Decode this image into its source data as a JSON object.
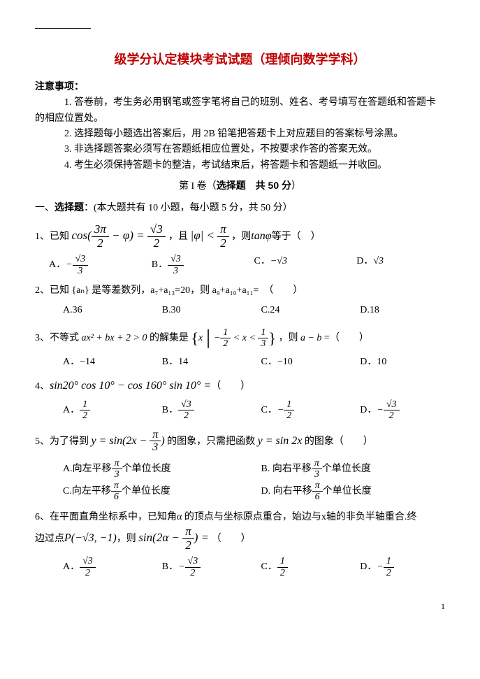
{
  "title": "级学分认定模块考试试题（理倾向数学学科）",
  "notice_heading": "注意事项：",
  "notice_items": [
    "1. 答卷前，考生务必用钢笔或签字笔将自己的班别、姓名、考号填写在答题纸和答题卡的相应位置处。",
    "2. 选择题每小题选出答案后，用 2B 铅笔把答题卡上对应题目的答案标号涂黑。",
    "3. 非选择题答案必须写在答题纸相应位置处，不按要求作答的答案无效。",
    "4. 考生必须保持答题卡的整洁，考试结束后，将答题卡和答题纸一并收回。"
  ],
  "section_header_a": "第 I 卷（",
  "section_header_b": "选择题",
  "section_header_c": "　共 50 分",
  "section_header_d": "）",
  "section_title_a": "一、",
  "section_title_b": "选择题",
  "section_title_c": "：(本大题共有 10 小题，每小题 5 分，共 50 分）",
  "q1_a": "1、已知 ",
  "q1_cos": "cos",
  "q1_frac1_num": "3π",
  "q1_frac1_den": "2",
  "q1_phi": " − φ",
  "q1_eq": " = ",
  "q1_frac2_num": "√3",
  "q1_frac2_den": "2",
  "q1_b": "，且",
  "q1_abs": "|φ| < ",
  "q1_frac3_num": "π",
  "q1_frac3_den": "2",
  "q1_c": "，则",
  "q1_tan": "tanφ",
  "q1_d": "等于（　）",
  "q1_optA_lbl": "A．",
  "q1_optA_num": "√3",
  "q1_optA_den": "3",
  "q1_optB_lbl": "B．",
  "q1_optB_num": "√3",
  "q1_optB_den": "3",
  "q1_optC_lbl": "C．",
  "q1_optC_val": "−√3",
  "q1_optD_lbl": "D．",
  "q1_optD_val": "√3",
  "q2": "2、已知 {aₙ} 是等差数列，a₇+a₁₃=20，则 a₉+a₁₀+a₁₁=　（　　）",
  "q2_optA": "A.36",
  "q2_optB": "B.30",
  "q2_optC": "C.24",
  "q2_optD": "D.18",
  "q3_a": "3、不等式 ",
  "q3_expr": "ax² + bx + 2 > 0",
  "q3_b": " 的解集是",
  "q3_x": "x",
  "q3_f1n": "1",
  "q3_f1d": "2",
  "q3_lt": " < x < ",
  "q3_f2n": "1",
  "q3_f2d": "3",
  "q3_c": "，则 ",
  "q3_ab": "a − b",
  "q3_d": " =（　　）",
  "q3_optA": "A．−14",
  "q3_optB": "B．14",
  "q3_optC": "C．−10",
  "q3_optD": "D．10",
  "q4_a": "4、",
  "q4_expr": "sin20° cos 10° − cos 160° sin 10° =",
  "q4_b": "（　　）",
  "q4_optA_lbl": "A．",
  "q4_optA_num": "1",
  "q4_optA_den": "2",
  "q4_optB_lbl": "B．",
  "q4_optB_num": "√3",
  "q4_optB_den": "2",
  "q4_optC_lbl": "C．",
  "q4_optC_num": "1",
  "q4_optC_den": "2",
  "q4_optD_lbl": "D．",
  "q4_optD_num": "√3",
  "q4_optD_den": "2",
  "q5_a": "5、为了得到",
  "q5_y1": "y = sin(2x − ",
  "q5_f1n": "π",
  "q5_f1d": "3",
  "q5_y1b": ")",
  "q5_b": "的图象，只需把函数",
  "q5_y2": "y = sin 2x",
  "q5_c": "的图象（　　）",
  "q5_optA_a": "A.向左平移",
  "q5_optA_n": "π",
  "q5_optA_d": "3",
  "q5_optA_b": "个单位长度",
  "q5_optB_a": "B. 向右平移",
  "q5_optB_n": "π",
  "q5_optB_d": "3",
  "q5_optB_b": "个单位长度",
  "q5_optC_a": "C.向左平移",
  "q5_optC_n": "π",
  "q5_optC_d": "6",
  "q5_optC_b": "个单位长度",
  "q5_optD_a": "D. 向右平移",
  "q5_optD_n": "π",
  "q5_optD_d": "6",
  "q5_optD_b": "个单位长度",
  "q6_a": "6、在平面直角坐标系中，已知角α 的顶点与坐标原点重合，始边与x轴的非负半轴重合.终",
  "q6_b": "边过点",
  "q6_P": "P(−√3, −1)",
  "q6_c": "，则",
  "q6_sin": "sin(2α − ",
  "q6_fn": "π",
  "q6_fd": "2",
  "q6_sinb": ") =",
  "q6_d": "（　　）",
  "q6_optA_lbl": "A．",
  "q6_optA_num": "√3",
  "q6_optA_den": "2",
  "q6_optB_lbl": "B．",
  "q6_optB_num": "√3",
  "q6_optB_den": "2",
  "q6_optC_lbl": "C．",
  "q6_optC_num": "1",
  "q6_optC_den": "2",
  "q6_optD_lbl": "D．",
  "q6_optD_num": "1",
  "q6_optD_den": "2",
  "pagenum": "1"
}
